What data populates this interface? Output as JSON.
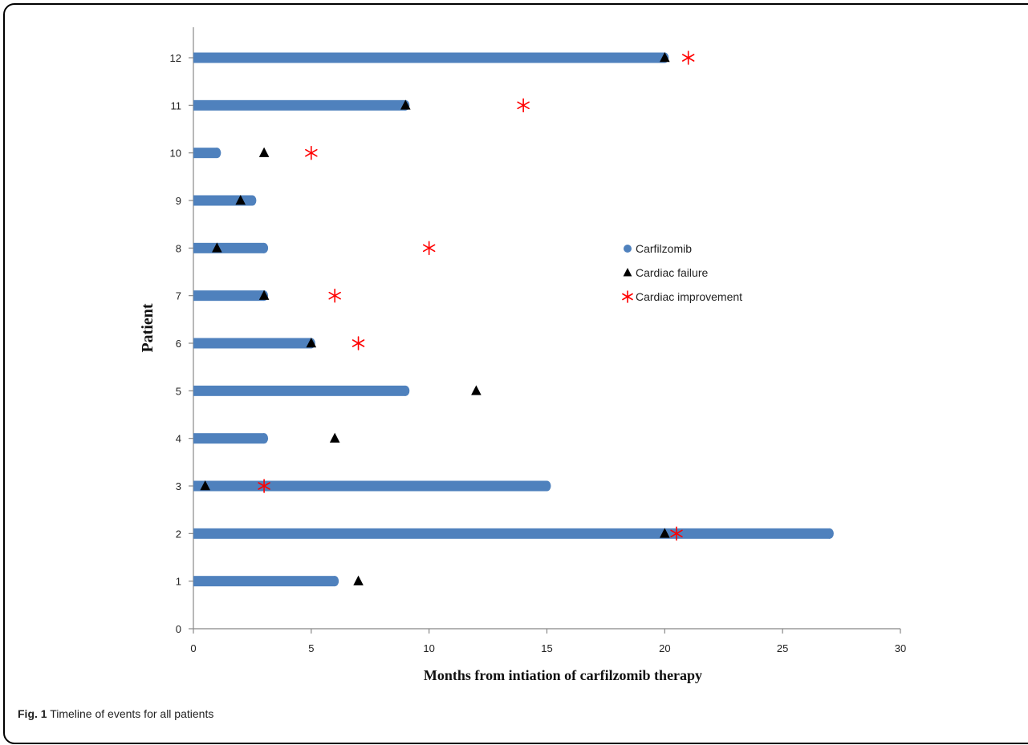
{
  "caption": {
    "label": "Fig. 1",
    "text": "Timeline of events for all patients"
  },
  "chart_data": {
    "type": "bar",
    "orientation": "horizontal",
    "xlabel": "Months from  intiation  of carfilzomib  therapy",
    "ylabel": "Patient",
    "xlim": [
      0,
      30
    ],
    "ylim": [
      0,
      12
    ],
    "xticks": [
      0,
      5,
      10,
      15,
      20,
      25,
      30
    ],
    "yticks": [
      0,
      1,
      2,
      3,
      4,
      5,
      6,
      7,
      8,
      9,
      10,
      11,
      12
    ],
    "legend_position": "right",
    "grid": false,
    "colors": {
      "carfilzomib": "#4f81bd",
      "cardiac_failure": "#000000",
      "cardiac_improvement": "#ff0000"
    },
    "series": [
      {
        "name": "Carfilzomib",
        "marker": "bar",
        "points": [
          {
            "patient": 1,
            "months": 6
          },
          {
            "patient": 2,
            "months": 27
          },
          {
            "patient": 3,
            "months": 15
          },
          {
            "patient": 4,
            "months": 3
          },
          {
            "patient": 5,
            "months": 9
          },
          {
            "patient": 6,
            "months": 5
          },
          {
            "patient": 7,
            "months": 3
          },
          {
            "patient": 8,
            "months": 3
          },
          {
            "patient": 9,
            "months": 2.5
          },
          {
            "patient": 10,
            "months": 1
          },
          {
            "patient": 11,
            "months": 9
          },
          {
            "patient": 12,
            "months": 20
          }
        ]
      },
      {
        "name": "Cardiac failure",
        "marker": "triangle",
        "points": [
          {
            "patient": 1,
            "months": 7
          },
          {
            "patient": 2,
            "months": 20
          },
          {
            "patient": 3,
            "months": 0.5
          },
          {
            "patient": 4,
            "months": 6
          },
          {
            "patient": 5,
            "months": 12
          },
          {
            "patient": 6,
            "months": 5
          },
          {
            "patient": 7,
            "months": 3
          },
          {
            "patient": 8,
            "months": 1
          },
          {
            "patient": 9,
            "months": 2
          },
          {
            "patient": 10,
            "months": 3
          },
          {
            "patient": 11,
            "months": 9
          },
          {
            "patient": 12,
            "months": 20
          }
        ]
      },
      {
        "name": "Cardiac improvement",
        "marker": "asterisk",
        "points": [
          {
            "patient": 2,
            "months": 20.5
          },
          {
            "patient": 3,
            "months": 3
          },
          {
            "patient": 6,
            "months": 7
          },
          {
            "patient": 7,
            "months": 6
          },
          {
            "patient": 8,
            "months": 10
          },
          {
            "patient": 10,
            "months": 5
          },
          {
            "patient": 11,
            "months": 14
          },
          {
            "patient": 12,
            "months": 21
          }
        ]
      }
    ]
  }
}
